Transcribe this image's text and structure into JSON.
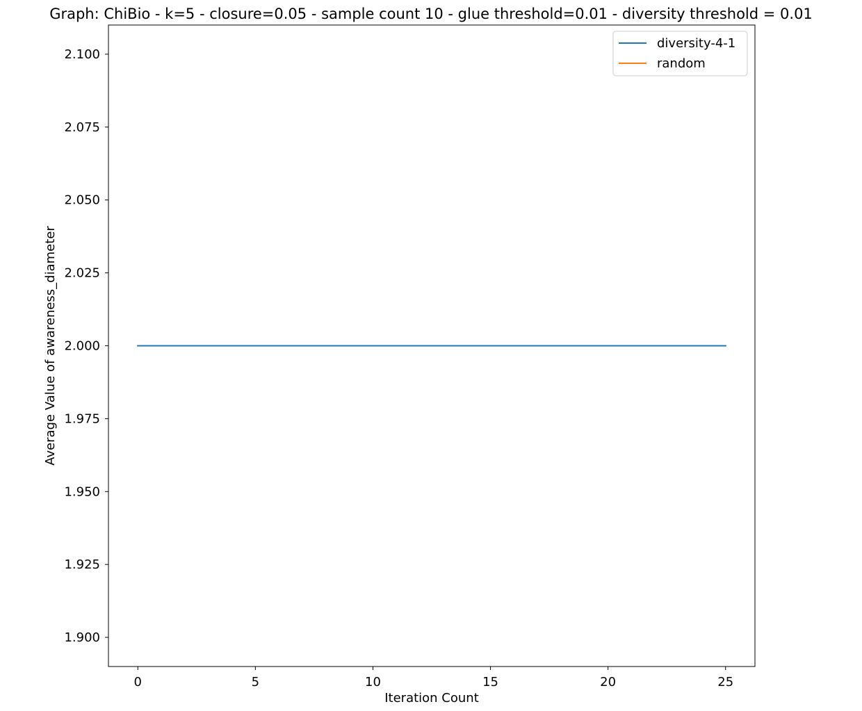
{
  "chart_data": {
    "type": "line",
    "title": "Graph: ChiBio - k=5 - closure=0.05 - sample count 10 - glue threshold=0.01 - diversity threshold = 0.01",
    "xlabel": "Iteration Count",
    "ylabel": "Average Value of awareness_diameter",
    "xlim": [
      -1.25,
      26.25
    ],
    "ylim": [
      1.89,
      2.11
    ],
    "x_ticks": [
      0,
      5,
      10,
      15,
      20,
      25
    ],
    "x_tick_labels": [
      "0",
      "5",
      "10",
      "15",
      "20",
      "25"
    ],
    "y_ticks": [
      1.9,
      1.925,
      1.95,
      1.975,
      2.0,
      2.025,
      2.05,
      2.075,
      2.1
    ],
    "y_tick_labels": [
      "1.900",
      "1.925",
      "1.950",
      "1.975",
      "2.000",
      "2.025",
      "2.050",
      "2.075",
      "2.100"
    ],
    "grid": false,
    "legend_position": "upper right",
    "x": [
      0,
      25
    ],
    "series": [
      {
        "name": "random",
        "color": "#ff7f0e",
        "values": [
          2.0,
          2.0
        ]
      },
      {
        "name": "diversity-4-1",
        "color": "#1f77b4",
        "values": [
          2.0,
          2.0
        ]
      }
    ],
    "legend_order": [
      "diversity-4-1",
      "random"
    ]
  }
}
